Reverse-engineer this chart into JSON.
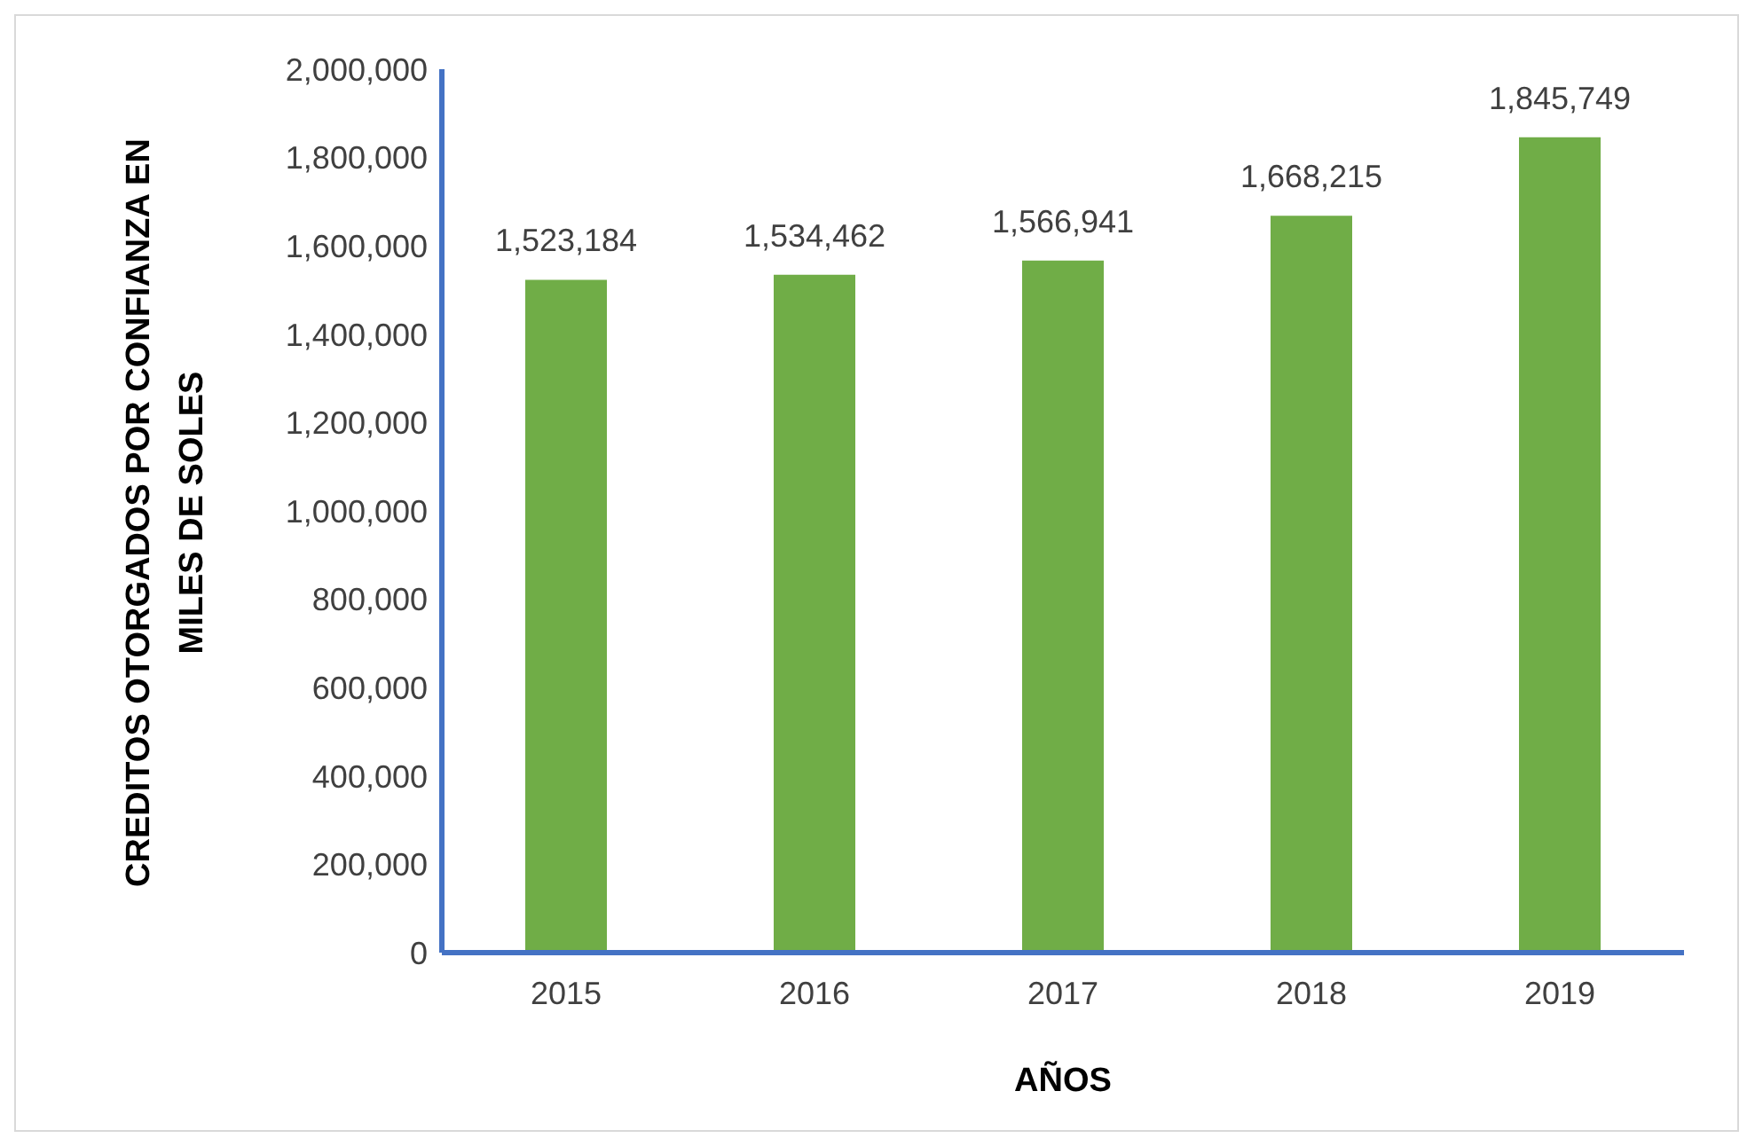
{
  "chart_data": {
    "type": "bar",
    "xlabel": "AÑOS",
    "ylabel": "CREDITOS OTORGADOS POR CONFIANZA EN MILES DE SOLES",
    "categories": [
      "2015",
      "2016",
      "2017",
      "2018",
      "2019"
    ],
    "values": [
      1523184,
      1534462,
      1566941,
      1668215,
      1845749
    ],
    "value_labels": [
      "1,523,184",
      "1,534,462",
      "1,566,941",
      "1,668,215",
      "1,845,749"
    ],
    "color": "#70ad47",
    "ylim": [
      0,
      2000000
    ],
    "yticks": [
      0,
      {
        "value": 200000,
        "label": "200,000"
      },
      {
        "value": 400000,
        "label": "400,000"
      },
      {
        "value": 600000,
        "label": "600,000"
      },
      {
        "value": 800000,
        "label": "800,000"
      },
      {
        "value": 1000000,
        "label": "1,000,000"
      },
      {
        "value": 1200000,
        "label": "1,200,000"
      },
      {
        "value": 1400000,
        "label": "1,400,000"
      },
      {
        "value": 1600000,
        "label": "1,600,000"
      },
      {
        "value": 1800000,
        "label": "1,800,000"
      },
      {
        "value": 2000000,
        "label": "2,000,000"
      }
    ],
    "grid": false
  }
}
